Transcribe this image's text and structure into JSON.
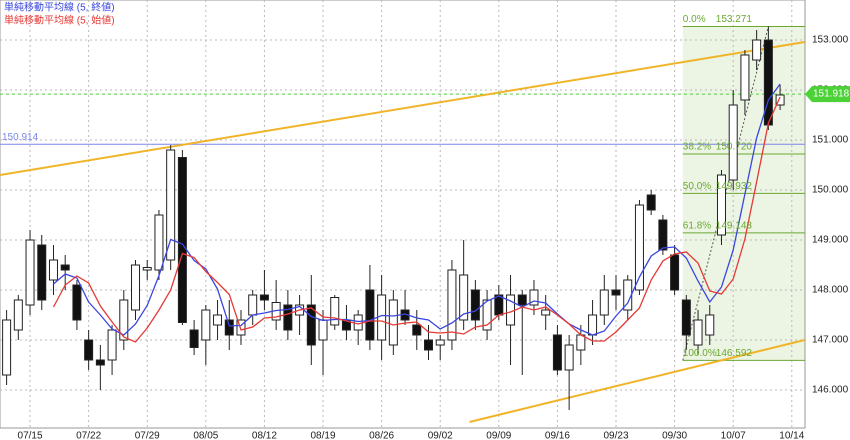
{
  "chart_data": {
    "type": "candlestick",
    "categories": [
      null,
      null,
      "07/15",
      null,
      null,
      null,
      null,
      "07/22",
      null,
      null,
      null,
      null,
      "07/29",
      null,
      null,
      null,
      null,
      "08/05",
      null,
      null,
      null,
      null,
      "08/12",
      null,
      null,
      null,
      null,
      "08/19",
      null,
      null,
      null,
      null,
      "08/26",
      null,
      null,
      null,
      null,
      "09/02",
      null,
      null,
      null,
      null,
      "09/09",
      null,
      null,
      null,
      null,
      "09/16",
      null,
      null,
      null,
      null,
      "09/23",
      null,
      null,
      null,
      null,
      "09/30",
      null,
      null,
      null,
      null,
      "10/07",
      null,
      null,
      null,
      null,
      "10/14"
    ],
    "open": [
      146.3,
      147.2,
      147.7,
      148.9,
      148.2,
      148.5,
      148.1,
      147.0,
      146.6,
      146.6,
      147.0,
      147.6,
      148.4,
      148.4,
      148.6,
      150.65,
      147.2,
      147.0,
      147.3,
      147.4,
      147.1,
      147.5,
      147.9,
      147.4,
      147.7,
      147.5,
      147.7,
      147.0,
      147.3,
      147.4,
      147.2,
      148.0,
      147.0,
      146.9,
      147.6,
      147.3,
      147.0,
      146.9,
      147.0,
      147.4,
      148.0,
      147.2,
      147.9,
      147.3,
      147.9,
      147.7,
      147.5,
      147.1,
      146.4,
      146.8,
      147.1,
      147.5,
      148.0,
      147.6,
      148.0,
      149.9,
      149.4,
      148.7,
      147.8,
      146.9,
      147.1,
      149.1,
      150.2,
      151.8,
      152.6,
      153.0,
      151.7,
      null
    ],
    "high": [
      147.6,
      147.9,
      149.2,
      149.1,
      148.9,
      148.7,
      148.2,
      147.2,
      146.9,
      147.3,
      148.0,
      148.6,
      148.6,
      149.6,
      150.9,
      150.8,
      147.4,
      147.7,
      147.8,
      147.8,
      147.6,
      148.0,
      148.4,
      148.2,
      148.0,
      147.9,
      148.3,
      147.6,
      147.9,
      147.7,
      147.6,
      148.5,
      148.3,
      148.0,
      148.0,
      147.6,
      147.3,
      147.1,
      148.6,
      149.0,
      148.2,
      148.0,
      148.1,
      148.3,
      148.0,
      148.2,
      147.9,
      147.3,
      147.1,
      147.3,
      147.8,
      148.3,
      148.3,
      148.3,
      149.8,
      150.0,
      149.5,
      148.9,
      147.9,
      147.6,
      147.7,
      150.4,
      152.0,
      152.8,
      153.2,
      153.27,
      152.1,
      null
    ],
    "low": [
      146.1,
      147.0,
      147.5,
      147.6,
      147.9,
      148.0,
      147.2,
      146.4,
      146.0,
      146.3,
      146.8,
      147.4,
      148.2,
      148.2,
      148.4,
      147.3,
      146.7,
      146.5,
      147.0,
      146.8,
      146.9,
      147.3,
      147.6,
      147.2,
      147.0,
      147.1,
      146.5,
      146.3,
      147.2,
      147.0,
      146.9,
      146.8,
      146.6,
      146.7,
      147.3,
      146.8,
      146.6,
      146.6,
      146.8,
      147.2,
      147.2,
      147.0,
      147.4,
      146.5,
      146.3,
      147.5,
      147.2,
      146.3,
      145.6,
      146.5,
      146.9,
      147.3,
      147.6,
      147.4,
      147.9,
      149.5,
      148.7,
      147.9,
      146.8,
      146.7,
      146.9,
      148.9,
      150.0,
      151.5,
      152.4,
      151.2,
      151.6,
      null
    ],
    "close": [
      147.4,
      147.8,
      149.0,
      147.8,
      148.6,
      148.4,
      147.4,
      146.6,
      146.5,
      147.2,
      147.8,
      148.5,
      148.45,
      149.5,
      150.8,
      147.35,
      146.85,
      147.6,
      147.5,
      147.1,
      147.4,
      147.9,
      147.8,
      147.75,
      147.2,
      147.7,
      146.9,
      147.4,
      147.85,
      147.2,
      147.5,
      147.0,
      147.9,
      147.8,
      147.4,
      147.1,
      146.8,
      147.0,
      148.4,
      148.3,
      147.4,
      147.8,
      147.5,
      147.9,
      147.7,
      148.0,
      147.6,
      146.4,
      146.9,
      147.1,
      147.5,
      148.0,
      147.9,
      148.2,
      149.7,
      149.6,
      148.8,
      148.0,
      147.1,
      147.4,
      147.5,
      150.3,
      151.7,
      152.7,
      153.0,
      151.3,
      151.9,
      null
    ],
    "series": [
      {
        "name": "単純移動平均線 (5, 終値)",
        "color": "#3a46e0",
        "values": [
          null,
          null,
          null,
          null,
          148.12,
          148.32,
          148.24,
          147.76,
          147.5,
          147.22,
          147.1,
          147.32,
          147.69,
          148.29,
          149.01,
          148.92,
          148.59,
          148.42,
          148.02,
          147.28,
          147.29,
          147.5,
          147.54,
          147.59,
          147.61,
          147.67,
          147.47,
          147.39,
          147.41,
          147.41,
          147.37,
          147.39,
          147.49,
          147.48,
          147.52,
          147.44,
          147.4,
          147.22,
          147.34,
          147.52,
          147.58,
          147.78,
          147.88,
          147.78,
          147.66,
          147.78,
          147.74,
          147.52,
          147.32,
          147.2,
          147.1,
          147.18,
          147.48,
          147.74,
          148.26,
          148.68,
          148.84,
          148.86,
          148.64,
          148.18,
          147.76,
          148.06,
          148.8,
          149.92,
          151.04,
          151.8,
          152.12,
          null
        ]
      },
      {
        "name": "単純移動平均線 (5, 始値)",
        "color": "#e53935",
        "values": [
          null,
          null,
          null,
          null,
          147.66,
          148.1,
          148.28,
          148.14,
          147.68,
          147.36,
          147.06,
          146.96,
          147.24,
          147.6,
          148.0,
          148.73,
          148.65,
          148.37,
          148.15,
          147.91,
          147.2,
          147.26,
          147.44,
          147.46,
          147.52,
          147.6,
          147.64,
          147.46,
          147.44,
          147.38,
          147.32,
          147.38,
          147.38,
          147.3,
          147.34,
          147.36,
          147.16,
          147.14,
          147.16,
          147.12,
          147.26,
          147.3,
          147.5,
          147.56,
          147.66,
          147.6,
          147.66,
          147.5,
          147.32,
          147.1,
          146.98,
          146.98,
          147.16,
          147.4,
          147.64,
          148.2,
          148.58,
          148.72,
          148.76,
          148.54,
          147.98,
          147.92,
          148.22,
          149.02,
          150.16,
          151.34,
          151.86,
          null
        ]
      }
    ],
    "ylim": [
      145.24,
      153.8
    ],
    "yticks": [
      {
        "value": 146,
        "label": "146.000"
      },
      {
        "value": 147,
        "label": "147.000"
      },
      {
        "value": 148,
        "label": "148.000"
      },
      {
        "value": 149,
        "label": "149.000"
      },
      {
        "value": 150,
        "label": "150.000"
      },
      {
        "value": 151,
        "label": "151.000"
      },
      {
        "value": 152,
        "label": "152.000"
      },
      {
        "value": 153,
        "label": "153.000"
      }
    ],
    "grid": true,
    "horizontal_line": {
      "value": 150.914,
      "label": "150.914",
      "color": "#7b86e8"
    },
    "current_price": {
      "value": 151.918,
      "label": "151.918",
      "color": "#4cd137"
    },
    "trendlines": [
      {
        "color": "#f0b429",
        "from": [
          -0.56,
          150.3
        ],
        "to": [
          68.1,
          152.96
        ]
      },
      {
        "color": "#f0b429",
        "from": [
          39.5,
          145.36
        ],
        "to": [
          68.1,
          147.0
        ]
      }
    ],
    "fibonacci": {
      "color": "#6aa832",
      "start_index": 57.7,
      "end_index": 65,
      "levels": [
        {
          "ratio": "0.0%",
          "value": 153.271,
          "label": "153.271"
        },
        {
          "ratio": "38.2%",
          "value": 150.72,
          "label": "150.720"
        },
        {
          "ratio": "50.0%",
          "value": 149.932,
          "label": "149.932"
        },
        {
          "ratio": "61.8%",
          "value": 149.143,
          "label": "149.143"
        },
        {
          "ratio": "100.0%",
          "value": 146.592,
          "label": "146.592"
        }
      ]
    }
  }
}
